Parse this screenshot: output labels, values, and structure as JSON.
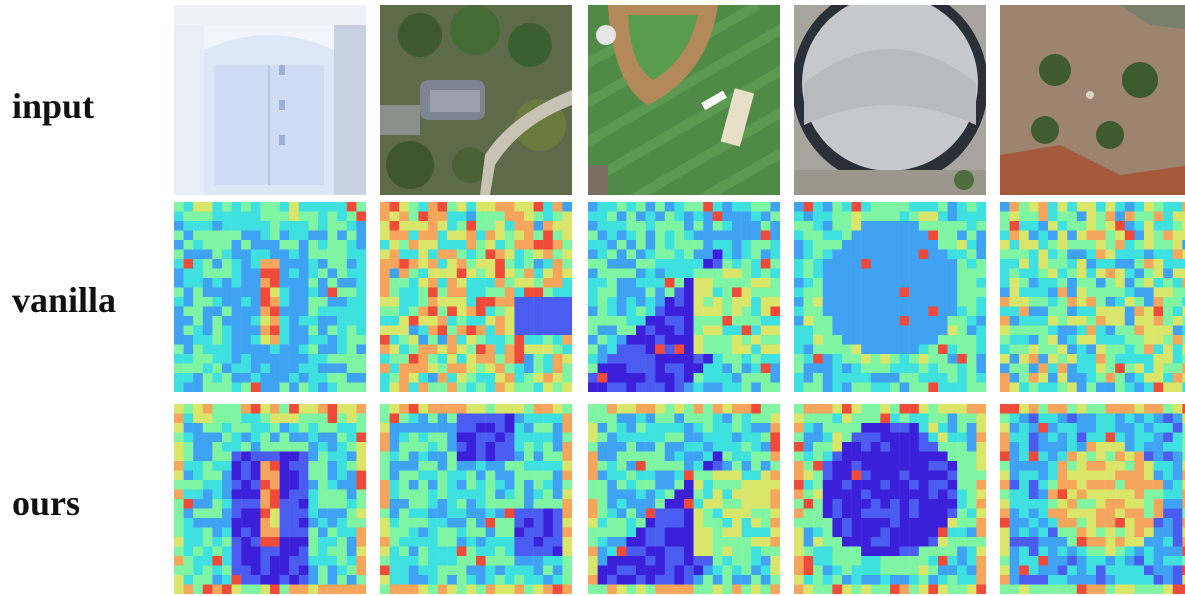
{
  "rows": [
    {
      "label": "input"
    },
    {
      "label": "vanilla"
    },
    {
      "label": "ours"
    }
  ],
  "columns": [
    {
      "scene": "white-roof-building"
    },
    {
      "scene": "campus-trees-road"
    },
    {
      "scene": "baseball-field"
    },
    {
      "scene": "round-stadium-roof"
    },
    {
      "scene": "plaza-with-trees"
    }
  ],
  "colormap": [
    "#3b1fd9",
    "#4b5cf0",
    "#3fa2f2",
    "#3fe0e0",
    "#7ff5a3",
    "#d9e66a",
    "#f5a65c",
    "#ef4a3a"
  ]
}
